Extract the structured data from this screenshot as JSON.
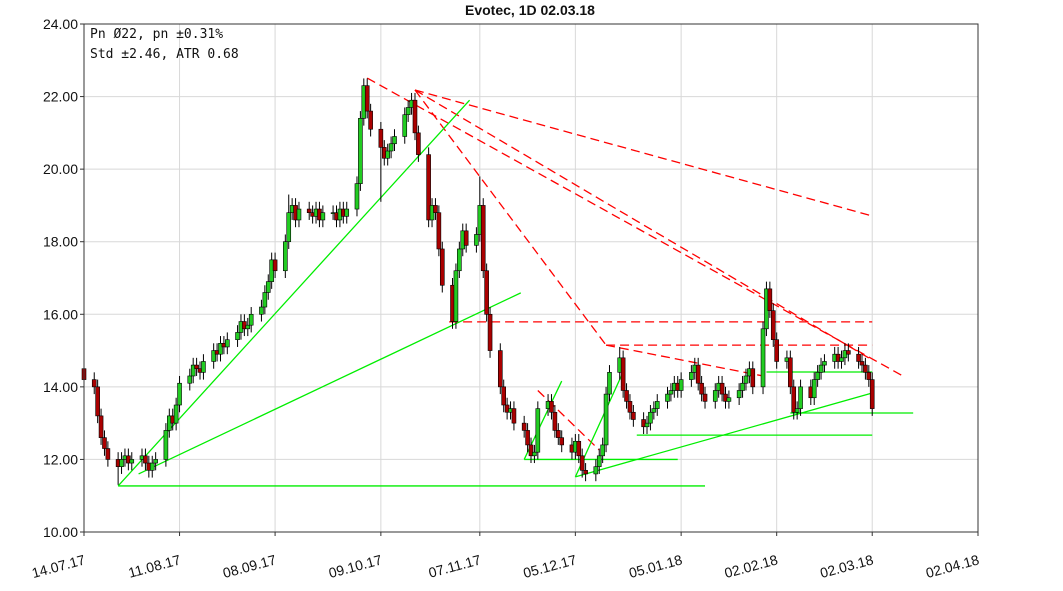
{
  "chart_data": {
    "type": "candlestick",
    "title": "Evotec, 1D 02.03.18",
    "info": [
      "Pn  Ø22, pn ±0.31%",
      "Std ±2.46, ATR 0.68"
    ],
    "up_color": "#22cc22",
    "down_color": "#aa0000",
    "grid": true,
    "xlim": [
      "2017-07-14",
      "2018-04-02"
    ],
    "xticks": [
      {
        "value": "2017-07-14",
        "label": "14.07.17"
      },
      {
        "value": "2017-08-11",
        "label": "11.08.17"
      },
      {
        "value": "2017-09-08",
        "label": "08.09.17"
      },
      {
        "value": "2017-10-09",
        "label": "09.10.17"
      },
      {
        "value": "2017-11-07",
        "label": "07.11.17"
      },
      {
        "value": "2017-12-05",
        "label": "05.12.17"
      },
      {
        "value": "2018-01-05",
        "label": "05.01.18"
      },
      {
        "value": "2018-02-02",
        "label": "02.02.18"
      },
      {
        "value": "2018-03-02",
        "label": "02.03.18"
      },
      {
        "value": "2018-04-02",
        "label": "02.04.18"
      }
    ],
    "ylim": [
      10,
      24
    ],
    "yticks": [
      {
        "value": 10,
        "label": "10.00"
      },
      {
        "value": 12,
        "label": "12.00"
      },
      {
        "value": 14,
        "label": "14.00"
      },
      {
        "value": 16,
        "label": "16.00"
      },
      {
        "value": 18,
        "label": "18.00"
      },
      {
        "value": 20,
        "label": "20.00"
      },
      {
        "value": 22,
        "label": "22.00"
      },
      {
        "value": 24,
        "label": "24.00"
      }
    ],
    "x": [
      "2017-07-14",
      "2017-07-17",
      "2017-07-18",
      "2017-07-19",
      "2017-07-20",
      "2017-07-21",
      "2017-07-24",
      "2017-07-25",
      "2017-07-26",
      "2017-07-27",
      "2017-07-28",
      "2017-07-31",
      "2017-08-01",
      "2017-08-02",
      "2017-08-03",
      "2017-08-04",
      "2017-08-07",
      "2017-08-08",
      "2017-08-09",
      "2017-08-10",
      "2017-08-11",
      "2017-08-14",
      "2017-08-15",
      "2017-08-16",
      "2017-08-17",
      "2017-08-18",
      "2017-08-21",
      "2017-08-22",
      "2017-08-23",
      "2017-08-24",
      "2017-08-25",
      "2017-08-28",
      "2017-08-29",
      "2017-08-30",
      "2017-08-31",
      "2017-09-01",
      "2017-09-04",
      "2017-09-05",
      "2017-09-06",
      "2017-09-07",
      "2017-09-08",
      "2017-09-11",
      "2017-09-12",
      "2017-09-13",
      "2017-09-14",
      "2017-09-15",
      "2017-09-18",
      "2017-09-19",
      "2017-09-20",
      "2017-09-21",
      "2017-09-22",
      "2017-09-25",
      "2017-09-26",
      "2017-09-27",
      "2017-09-28",
      "2017-09-29",
      "2017-10-02",
      "2017-10-03",
      "2017-10-04",
      "2017-10-05",
      "2017-10-06",
      "2017-10-09",
      "2017-10-10",
      "2017-10-11",
      "2017-10-12",
      "2017-10-13",
      "2017-10-16",
      "2017-10-17",
      "2017-10-18",
      "2017-10-19",
      "2017-10-20",
      "2017-10-23",
      "2017-10-24",
      "2017-10-25",
      "2017-10-26",
      "2017-10-27",
      "2017-10-30",
      "2017-10-31",
      "2017-11-01",
      "2017-11-02",
      "2017-11-03",
      "2017-11-06",
      "2017-11-07",
      "2017-11-08",
      "2017-11-09",
      "2017-11-10",
      "2017-11-13",
      "2017-11-14",
      "2017-11-15",
      "2017-11-16",
      "2017-11-17",
      "2017-11-20",
      "2017-11-21",
      "2017-11-22",
      "2017-11-23",
      "2017-11-24",
      "2017-11-27",
      "2017-11-28",
      "2017-11-29",
      "2017-11-30",
      "2017-12-01",
      "2017-12-04",
      "2017-12-05",
      "2017-12-06",
      "2017-12-07",
      "2017-12-08",
      "2017-12-11",
      "2017-12-12",
      "2017-12-13",
      "2017-12-14",
      "2017-12-15",
      "2017-12-18",
      "2017-12-19",
      "2017-12-20",
      "2017-12-21",
      "2017-12-22",
      "2017-12-25",
      "2017-12-26",
      "2017-12-27",
      "2017-12-28",
      "2017-12-29",
      "2018-01-01",
      "2018-01-02",
      "2018-01-03",
      "2018-01-04",
      "2018-01-05",
      "2018-01-08",
      "2018-01-09",
      "2018-01-10",
      "2018-01-11",
      "2018-01-12",
      "2018-01-15",
      "2018-01-16",
      "2018-01-17",
      "2018-01-18",
      "2018-01-19",
      "2018-01-22",
      "2018-01-23",
      "2018-01-24",
      "2018-01-25",
      "2018-01-26",
      "2018-01-29",
      "2018-01-30",
      "2018-01-31",
      "2018-02-01",
      "2018-02-02",
      "2018-02-05",
      "2018-02-06",
      "2018-02-07",
      "2018-02-08",
      "2018-02-09",
      "2018-02-12",
      "2018-02-13",
      "2018-02-14",
      "2018-02-15",
      "2018-02-16",
      "2018-02-19",
      "2018-02-20",
      "2018-02-21",
      "2018-02-22",
      "2018-02-23",
      "2018-02-26",
      "2018-02-27",
      "2018-02-28",
      "2018-03-01",
      "2018-03-02"
    ],
    "open": [
      14.5,
      14.2,
      14.0,
      13.2,
      12.6,
      12.3,
      12.0,
      11.8,
      12.0,
      12.1,
      11.9,
      12.0,
      12.1,
      11.9,
      11.7,
      11.9,
      12.0,
      12.8,
      13.2,
      13.0,
      13.5,
      14.1,
      14.3,
      14.6,
      14.5,
      14.4,
      14.7,
      15.0,
      14.9,
      15.2,
      15.1,
      15.3,
      15.5,
      15.8,
      15.6,
      15.7,
      16.0,
      16.2,
      16.6,
      16.9,
      17.5,
      17.2,
      18.0,
      18.8,
      19.0,
      18.6,
      18.9,
      18.8,
      18.7,
      18.9,
      18.6,
      18.8,
      18.8,
      18.6,
      18.9,
      18.7,
      18.9,
      19.6,
      21.4,
      22.3,
      21.6,
      21.1,
      20.6,
      20.3,
      20.5,
      20.7,
      20.9,
      21.5,
      21.7,
      21.9,
      21.0,
      20.4,
      18.6,
      19.0,
      18.8,
      17.8,
      16.8,
      15.8,
      17.2,
      17.8,
      18.3,
      17.9,
      18.2,
      19.0,
      17.2,
      16.0,
      15.0,
      14.0,
      13.5,
      13.3,
      13.4,
      13.0,
      12.8,
      12.4,
      12.1,
      12.2,
      13.4,
      13.6,
      13.3,
      12.8,
      12.6,
      12.4,
      12.2,
      12.5,
      12.1,
      11.7,
      11.6,
      11.8,
      12.1,
      12.4,
      13.8,
      14.4,
      14.8,
      13.9,
      13.6,
      13.3,
      13.1,
      12.9,
      13.0,
      13.3,
      13.4,
      13.6,
      13.8,
      13.9,
      14.1,
      13.9,
      14.2,
      14.4,
      14.6,
      14.1,
      13.8,
      13.6,
      13.9,
      14.1,
      13.8,
      13.6,
      13.7,
      13.9,
      14.1,
      14.3,
      14.5,
      14.0,
      15.6,
      16.7,
      16.1,
      15.3,
      14.7,
      14.8,
      14.0,
      13.3,
      13.4,
      14.0,
      13.7,
      14.2,
      14.4,
      14.6,
      14.7,
      14.9,
      14.7,
      14.8,
      15.0,
      14.9,
      14.7,
      14.6,
      14.4,
      14.2
    ],
    "high": [
      14.7,
      14.4,
      14.2,
      13.4,
      12.8,
      12.5,
      12.2,
      12.2,
      12.3,
      12.3,
      12.2,
      12.3,
      12.3,
      12.1,
      12.1,
      12.2,
      13.0,
      13.4,
      13.4,
      13.7,
      14.3,
      14.5,
      14.8,
      14.8,
      14.7,
      14.9,
      15.2,
      15.2,
      15.4,
      15.4,
      15.5,
      15.7,
      16.0,
      16.0,
      15.9,
      16.2,
      16.4,
      16.8,
      17.1,
      17.7,
      17.7,
      18.2,
      19.3,
      19.2,
      19.2,
      19.1,
      19.1,
      19.0,
      19.1,
      19.1,
      19.0,
      19.0,
      19.0,
      19.1,
      19.1,
      19.1,
      19.8,
      21.6,
      22.5,
      22.5,
      21.8,
      21.3,
      20.8,
      20.7,
      20.9,
      21.1,
      21.7,
      21.9,
      22.1,
      22.1,
      21.2,
      20.6,
      19.2,
      19.2,
      19.0,
      18.0,
      17.0,
      17.4,
      18.0,
      18.5,
      18.5,
      18.4,
      19.8,
      19.2,
      17.4,
      16.2,
      15.2,
      14.2,
      13.7,
      13.6,
      13.6,
      13.2,
      13.0,
      12.6,
      12.4,
      13.6,
      13.8,
      13.8,
      13.5,
      13.0,
      12.8,
      12.6,
      12.7,
      12.7,
      12.3,
      11.9,
      12.0,
      12.3,
      12.6,
      14.0,
      14.6,
      15.1,
      15.0,
      14.1,
      13.8,
      13.5,
      13.3,
      13.2,
      13.5,
      13.6,
      13.8,
      14.0,
      14.1,
      14.3,
      14.3,
      14.4,
      14.6,
      14.8,
      14.8,
      14.3,
      14.0,
      14.1,
      14.3,
      14.3,
      14.0,
      13.9,
      14.1,
      14.3,
      14.5,
      14.7,
      14.7,
      15.8,
      16.9,
      16.9,
      16.3,
      15.5,
      15.0,
      15.0,
      14.2,
      13.6,
      14.2,
      14.2,
      14.4,
      14.6,
      14.8,
      14.9,
      15.1,
      15.1,
      15.0,
      15.2,
      15.2,
      15.1,
      14.9,
      14.8,
      14.6,
      14.4
    ],
    "low": [
      14.0,
      13.8,
      13.0,
      12.4,
      12.1,
      11.8,
      11.3,
      11.6,
      11.8,
      11.7,
      11.7,
      11.8,
      11.7,
      11.5,
      11.5,
      11.7,
      11.8,
      12.6,
      12.8,
      12.8,
      13.3,
      13.9,
      14.1,
      14.3,
      14.2,
      14.2,
      14.5,
      14.7,
      14.7,
      14.9,
      14.9,
      15.1,
      15.3,
      15.4,
      15.4,
      15.5,
      15.8,
      16.0,
      16.4,
      16.7,
      17.0,
      17.0,
      17.8,
      18.6,
      18.4,
      18.4,
      18.6,
      18.5,
      18.5,
      18.4,
      18.4,
      18.6,
      18.4,
      18.4,
      18.5,
      18.5,
      18.7,
      19.4,
      21.2,
      21.4,
      20.9,
      19.1,
      20.1,
      20.1,
      20.3,
      20.5,
      20.7,
      21.3,
      21.5,
      20.8,
      20.2,
      18.4,
      18.4,
      18.6,
      17.6,
      16.6,
      15.6,
      15.6,
      17.0,
      17.6,
      17.7,
      17.7,
      18.0,
      17.0,
      15.8,
      14.8,
      13.8,
      13.3,
      13.1,
      13.1,
      12.8,
      12.6,
      12.2,
      11.9,
      11.9,
      12.0,
      13.2,
      13.1,
      12.6,
      12.4,
      12.2,
      12.0,
      12.0,
      11.9,
      11.5,
      11.4,
      11.4,
      11.6,
      11.9,
      12.2,
      13.6,
      14.2,
      13.7,
      13.4,
      13.1,
      12.9,
      12.7,
      12.7,
      12.8,
      13.1,
      13.2,
      13.4,
      13.6,
      13.7,
      13.7,
      13.7,
      14.0,
      14.2,
      13.9,
      13.6,
      13.4,
      13.4,
      13.7,
      13.6,
      13.4,
      13.4,
      13.5,
      13.7,
      13.9,
      14.1,
      13.8,
      13.8,
      15.4,
      15.9,
      15.1,
      14.5,
      14.5,
      13.8,
      13.1,
      13.1,
      13.2,
      13.5,
      13.5,
      14.0,
      14.2,
      14.4,
      14.5,
      14.5,
      14.5,
      14.6,
      14.7,
      14.5,
      14.4,
      14.2,
      14.0,
      13.2
    ],
    "close": [
      14.2,
      14.0,
      13.2,
      12.6,
      12.3,
      12.0,
      11.8,
      12.0,
      12.1,
      11.9,
      12.0,
      12.1,
      11.9,
      11.7,
      11.9,
      12.0,
      12.8,
      13.2,
      13.0,
      13.5,
      14.1,
      14.3,
      14.6,
      14.5,
      14.4,
      14.7,
      15.0,
      14.9,
      15.2,
      15.1,
      15.3,
      15.5,
      15.8,
      15.6,
      15.7,
      16.0,
      16.2,
      16.6,
      16.9,
      17.5,
      17.2,
      18.0,
      18.8,
      19.0,
      18.6,
      18.9,
      18.8,
      18.7,
      18.9,
      18.6,
      18.8,
      18.8,
      18.6,
      18.9,
      18.7,
      18.9,
      19.6,
      21.4,
      22.3,
      21.6,
      21.1,
      20.6,
      20.3,
      20.5,
      20.7,
      20.9,
      21.5,
      21.7,
      21.9,
      21.0,
      20.4,
      18.6,
      19.0,
      18.8,
      17.8,
      16.8,
      15.8,
      17.2,
      17.8,
      18.3,
      17.9,
      18.2,
      19.0,
      17.2,
      16.0,
      15.0,
      14.0,
      13.5,
      13.3,
      13.4,
      13.0,
      12.8,
      12.4,
      12.1,
      12.2,
      13.4,
      13.6,
      13.3,
      12.8,
      12.6,
      12.4,
      12.2,
      12.5,
      12.1,
      11.7,
      11.6,
      11.8,
      12.1,
      12.4,
      13.8,
      14.4,
      14.8,
      13.9,
      13.6,
      13.3,
      13.1,
      12.9,
      13.0,
      13.3,
      13.4,
      13.6,
      13.8,
      13.9,
      14.1,
      13.9,
      14.2,
      14.4,
      14.6,
      14.1,
      13.8,
      13.6,
      13.9,
      14.1,
      13.8,
      13.6,
      13.7,
      13.9,
      14.1,
      14.3,
      14.5,
      14.0,
      15.6,
      16.7,
      16.1,
      15.3,
      14.7,
      14.8,
      14.0,
      13.3,
      13.4,
      14.0,
      13.7,
      14.2,
      14.4,
      14.6,
      14.7,
      14.9,
      14.7,
      14.8,
      15.0,
      14.9,
      14.7,
      14.6,
      14.4,
      14.2,
      13.4
    ],
    "trendlines": [
      {
        "color": "#ff0000",
        "dashed": true,
        "x": [
          "2017-10-05",
          "2018-03-11"
        ],
        "y": [
          22.51,
          14.3
        ]
      },
      {
        "color": "#ff0000",
        "dashed": true,
        "x": [
          "2017-10-19",
          "2018-03-02"
        ],
        "y": [
          22.18,
          18.71
        ]
      },
      {
        "color": "#ff0000",
        "dashed": true,
        "x": [
          "2017-10-19",
          "2018-03-02"
        ],
        "y": [
          22.18,
          14.74
        ]
      },
      {
        "color": "#ff0000",
        "dashed": true,
        "x": [
          "2017-10-19",
          "2017-12-14"
        ],
        "y": [
          22.18,
          15.15
        ]
      },
      {
        "color": "#ff0000",
        "dashed": true,
        "x": [
          "2017-10-29",
          "2018-03-02"
        ],
        "y": [
          15.79,
          15.79
        ]
      },
      {
        "color": "#ff0000",
        "dashed": true,
        "x": [
          "2017-12-14",
          "2018-03-02"
        ],
        "y": [
          15.15,
          15.15
        ]
      },
      {
        "color": "#ff0000",
        "dashed": true,
        "x": [
          "2017-12-14",
          "2018-01-29"
        ],
        "y": [
          15.15,
          14.3
        ]
      },
      {
        "color": "#ff0000",
        "dashed": true,
        "x": [
          "2017-11-24",
          "2017-12-12"
        ],
        "y": [
          13.9,
          12.26
        ]
      },
      {
        "color": "#00ee00",
        "dashed": false,
        "x": [
          "2017-07-24",
          "2018-01-12"
        ],
        "y": [
          11.27,
          11.27
        ]
      },
      {
        "color": "#00ee00",
        "dashed": false,
        "x": [
          "2017-07-24",
          "2017-11-04"
        ],
        "y": [
          11.27,
          21.9
        ]
      },
      {
        "color": "#00ee00",
        "dashed": false,
        "x": [
          "2017-07-30",
          "2017-11-19"
        ],
        "y": [
          11.6,
          16.59
        ]
      },
      {
        "color": "#00ee00",
        "dashed": false,
        "x": [
          "2017-11-20",
          "2018-01-04"
        ],
        "y": [
          12.0,
          12.0
        ]
      },
      {
        "color": "#00ee00",
        "dashed": false,
        "x": [
          "2017-11-20",
          "2017-12-01"
        ],
        "y": [
          12.0,
          14.16
        ]
      },
      {
        "color": "#00ee00",
        "dashed": false,
        "x": [
          "2017-12-05",
          "2018-03-02"
        ],
        "y": [
          11.52,
          13.83
        ]
      },
      {
        "color": "#00ee00",
        "dashed": false,
        "x": [
          "2017-12-05",
          "2017-12-19"
        ],
        "y": [
          11.52,
          14.41
        ]
      },
      {
        "color": "#00ee00",
        "dashed": false,
        "x": [
          "2017-12-23",
          "2018-03-02"
        ],
        "y": [
          12.67,
          12.67
        ]
      },
      {
        "color": "#00ee00",
        "dashed": false,
        "x": [
          "2018-02-06",
          "2018-03-14"
        ],
        "y": [
          13.28,
          13.28
        ]
      },
      {
        "color": "#00ee00",
        "dashed": false,
        "x": [
          "2018-01-30",
          "2018-03-02"
        ],
        "y": [
          14.41,
          14.41
        ]
      }
    ]
  }
}
